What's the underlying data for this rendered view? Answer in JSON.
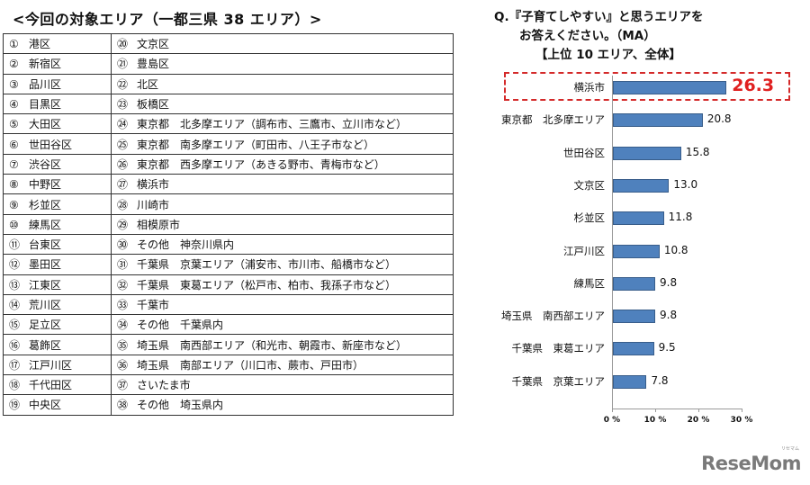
{
  "left_panel": {
    "title": "<今回の対象エリア（一都三県 38 エリア）>",
    "rows": [
      {
        "a_num": "①",
        "a": "港区",
        "b_num": "⑳",
        "b": "文京区"
      },
      {
        "a_num": "②",
        "a": "新宿区",
        "b_num": "㉑",
        "b": "豊島区"
      },
      {
        "a_num": "③",
        "a": "品川区",
        "b_num": "㉒",
        "b": "北区"
      },
      {
        "a_num": "④",
        "a": "目黒区",
        "b_num": "㉓",
        "b": "板橋区"
      },
      {
        "a_num": "⑤",
        "a": "大田区",
        "b_num": "㉔",
        "b": "東京都　北多摩エリア（調布市、三鷹市、立川市など）"
      },
      {
        "a_num": "⑥",
        "a": "世田谷区",
        "b_num": "㉕",
        "b": "東京都　南多摩エリア（町田市、八王子市など）"
      },
      {
        "a_num": "⑦",
        "a": "渋谷区",
        "b_num": "㉖",
        "b": "東京都　西多摩エリア（あきる野市、青梅市など）"
      },
      {
        "a_num": "⑧",
        "a": "中野区",
        "b_num": "㉗",
        "b": "横浜市"
      },
      {
        "a_num": "⑨",
        "a": "杉並区",
        "b_num": "㉘",
        "b": "川崎市"
      },
      {
        "a_num": "⑩",
        "a": "練馬区",
        "b_num": "㉙",
        "b": "相模原市"
      },
      {
        "a_num": "⑪",
        "a": "台東区",
        "b_num": "㉚",
        "b": "その他　神奈川県内"
      },
      {
        "a_num": "⑫",
        "a": "墨田区",
        "b_num": "㉛",
        "b": "千葉県　京葉エリア（浦安市、市川市、船橋市など）"
      },
      {
        "a_num": "⑬",
        "a": "江東区",
        "b_num": "㉜",
        "b": "千葉県　東葛エリア（松戸市、柏市、我孫子市など）"
      },
      {
        "a_num": "⑭",
        "a": "荒川区",
        "b_num": "㉝",
        "b": "千葉市"
      },
      {
        "a_num": "⑮",
        "a": "足立区",
        "b_num": "㉞",
        "b": "その他　千葉県内"
      },
      {
        "a_num": "⑯",
        "a": "葛飾区",
        "b_num": "㉟",
        "b": "埼玉県　南西部エリア（和光市、朝霞市、新座市など）"
      },
      {
        "a_num": "⑰",
        "a": "江戸川区",
        "b_num": "㊱",
        "b": "埼玉県　南部エリア（川口市、蕨市、戸田市）"
      },
      {
        "a_num": "⑱",
        "a": "千代田区",
        "b_num": "㊲",
        "b": "さいたま市"
      },
      {
        "a_num": "⑲",
        "a": "中央区",
        "b_num": "㊳",
        "b": "その他　埼玉県内"
      }
    ]
  },
  "question": {
    "line1": "Q.『子育てしやすい』と思うエリアを",
    "line2": "お答えください。（MA）",
    "line3": "【上位 10 エリア、全体】"
  },
  "chart_data": {
    "type": "bar",
    "orientation": "horizontal",
    "title": "Q.『子育てしやすい』と思うエリアをお答えください。（MA）【上位 10 エリア、全体】",
    "xlabel": "",
    "ylabel": "",
    "categories": [
      "横浜市",
      "東京都　北多摩エリア",
      "世田谷区",
      "文京区",
      "杉並区",
      "江戸川区",
      "練馬区",
      "埼玉県　南西部エリア",
      "千葉県　東葛エリア",
      "千葉県　京葉エリア"
    ],
    "values": [
      26.3,
      20.8,
      15.8,
      13.0,
      11.8,
      10.8,
      9.8,
      9.8,
      9.5,
      7.8
    ],
    "value_labels": [
      "26.3",
      "20.8",
      "15.8",
      "13.0",
      "11.8",
      "10.8",
      "9.8",
      "9.8",
      "9.5",
      "7.8"
    ],
    "xlim": [
      0,
      30
    ],
    "x_ticks": [
      "0 %",
      "10 %",
      "20 %",
      "30 %"
    ],
    "grid": false,
    "legend": "none",
    "bar_color": "#4f81bd",
    "highlight": {
      "category": "横浜市",
      "color": "#e02020",
      "style": "red dashed box"
    }
  },
  "branding": {
    "logo": "ReseMom",
    "logo_sub": "リセマム"
  }
}
